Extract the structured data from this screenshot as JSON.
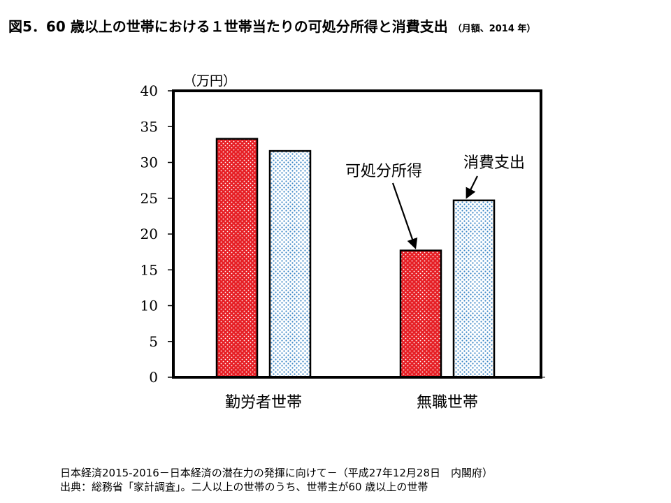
{
  "title": {
    "main": "図5．60 歳以上の世帯における１世帯当たりの可処分所得と消費支出",
    "sub": "（月額、2014 年）"
  },
  "chart_data": {
    "type": "bar",
    "unit_label": "（万円）",
    "categories": [
      "勤労者世帯",
      "無職世帯"
    ],
    "series": [
      {
        "name": "可処分所得",
        "values": [
          33.3,
          17.7
        ],
        "color": "#e8252b",
        "pattern": "red-dots"
      },
      {
        "name": "消費支出",
        "values": [
          31.6,
          24.7
        ],
        "color": "#4a90c8",
        "pattern": "blue-dots"
      }
    ],
    "ylim": [
      0,
      40
    ],
    "yticks": [
      0,
      5,
      10,
      15,
      20,
      25,
      30,
      35,
      40
    ],
    "ytick_labels": [
      "0",
      "5",
      "10",
      "15",
      "20",
      "25",
      "30",
      "35",
      "40"
    ],
    "annotations": [
      {
        "text": "可処分所得",
        "target_series": 0,
        "target_category": 1
      },
      {
        "text": "消費支出",
        "target_series": 1,
        "target_category": 1
      }
    ],
    "legend": "none",
    "grid": false
  },
  "footer": {
    "line1": "日本経済2015-2016－日本経済の潜在力の発揮に向けて－（平成27年12月28日　内閣府）",
    "line2": "出典：総務省「家計調査」。二人以上の世帯のうち、世帯主が60 歳以上の世帯"
  }
}
